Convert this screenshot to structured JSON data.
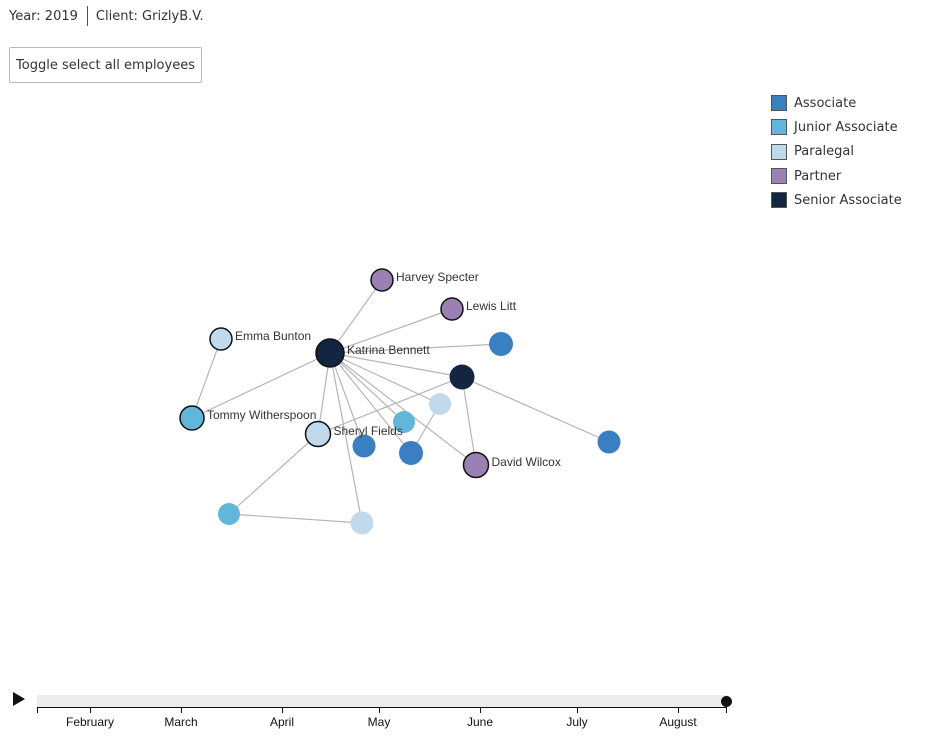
{
  "header": {
    "year": "Year: 2019",
    "client": "Client: GrizlyB.V."
  },
  "toggle_button_label": "Toggle select all employees",
  "legend": [
    {
      "label": "Associate",
      "color": "#3a7fc1"
    },
    {
      "label": "Junior Associate",
      "color": "#61b7d9"
    },
    {
      "label": "Paralegal",
      "color": "#c0d9ec"
    },
    {
      "label": "Partner",
      "color": "#9b80b3"
    },
    {
      "label": "Senior Associate",
      "color": "#122641"
    }
  ],
  "graph": {
    "nodes": [
      {
        "id": "harvey",
        "label": "Harvey Specter",
        "role": "Partner"
      },
      {
        "id": "lewis",
        "label": "Lewis Litt",
        "role": "Partner"
      },
      {
        "id": "emma",
        "label": "Emma Bunton",
        "role": "Paralegal"
      },
      {
        "id": "katrina",
        "label": "Katrina Bennett",
        "role": "Senior Associate"
      },
      {
        "id": "a1",
        "label": "",
        "role": "Associate"
      },
      {
        "id": "s2",
        "label": "",
        "role": "Senior Associate"
      },
      {
        "id": "tommy",
        "label": "Tommy Witherspoon",
        "role": "Junior Associate"
      },
      {
        "id": "sheryl",
        "label": "Sheryl Fields",
        "role": "Paralegal"
      },
      {
        "id": "p2",
        "label": "",
        "role": "Paralegal"
      },
      {
        "id": "j2",
        "label": "",
        "role": "Junior Associate"
      },
      {
        "id": "a2",
        "label": "",
        "role": "Associate"
      },
      {
        "id": "a3",
        "label": "",
        "role": "Associate"
      },
      {
        "id": "david",
        "label": "David Wilcox",
        "role": "Partner"
      },
      {
        "id": "a4",
        "label": "",
        "role": "Associate"
      },
      {
        "id": "j3",
        "label": "",
        "role": "Junior Associate"
      },
      {
        "id": "p3",
        "label": "",
        "role": "Paralegal"
      }
    ],
    "links": [
      [
        "katrina",
        "harvey"
      ],
      [
        "katrina",
        "lewis"
      ],
      [
        "katrina",
        "a1"
      ],
      [
        "katrina",
        "tommy"
      ],
      [
        "katrina",
        "sheryl"
      ],
      [
        "katrina",
        "a2"
      ],
      [
        "katrina",
        "a3"
      ],
      [
        "katrina",
        "j2"
      ],
      [
        "katrina",
        "p2"
      ],
      [
        "katrina",
        "david"
      ],
      [
        "katrina",
        "s2"
      ],
      [
        "katrina",
        "p3"
      ],
      [
        "emma",
        "tommy"
      ],
      [
        "s2",
        "sheryl"
      ],
      [
        "s2",
        "david"
      ],
      [
        "s2",
        "a4"
      ],
      [
        "p2",
        "a3"
      ],
      [
        "sheryl",
        "j3"
      ],
      [
        "j3",
        "p3"
      ]
    ]
  },
  "timeline": {
    "months": [
      "February",
      "March",
      "April",
      "May",
      "June",
      "July",
      "August"
    ]
  }
}
